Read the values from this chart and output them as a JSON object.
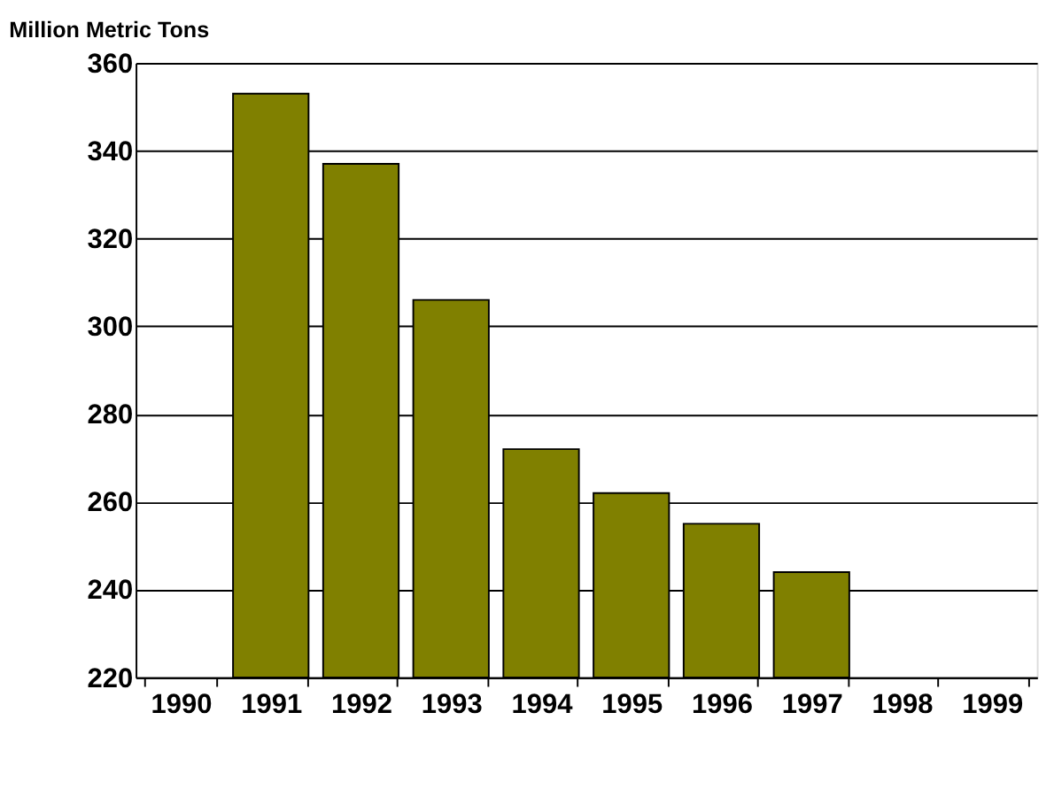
{
  "chart_data": {
    "type": "bar",
    "ylabel": "Million Metric Tons",
    "categories": [
      "1990",
      "1991",
      "1992",
      "1993",
      "1994",
      "1995",
      "1996",
      "1997",
      "1998",
      "1999"
    ],
    "values": [
      null,
      353,
      337,
      306,
      272,
      262,
      255,
      244,
      null,
      null
    ],
    "color": "#808000",
    "ylim": [
      220,
      360
    ],
    "yticks": [
      220,
      240,
      260,
      280,
      300,
      320,
      340,
      360
    ],
    "grid": "y"
  }
}
